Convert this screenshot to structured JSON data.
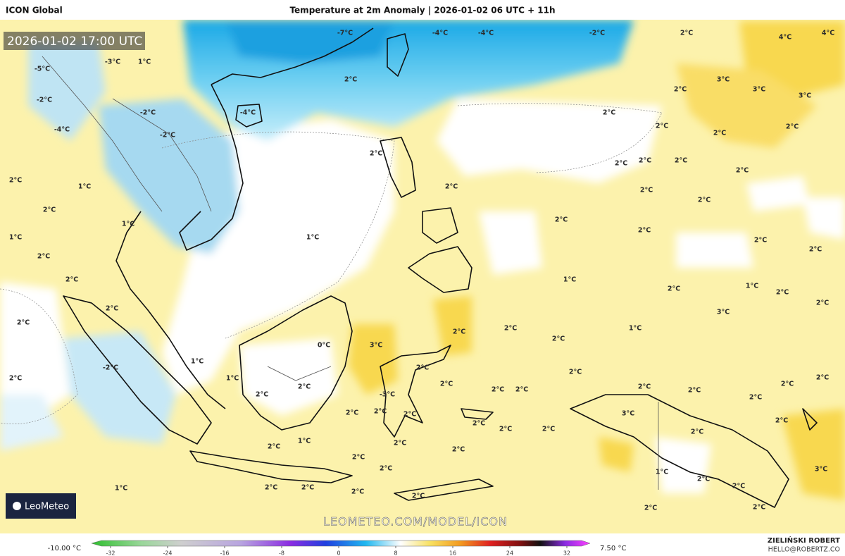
{
  "header": {
    "model": "ICON Global",
    "title": "Temperature at 2m Anomaly | 2026-01-02 06 UTC + 11h"
  },
  "timestamp": "2026-01-02 17:00 UTC",
  "watermark": "LEOMETEO.COM/MODEL/ICON",
  "logo": "LeoMeteo",
  "author": {
    "name": "ZIELIŃSKI ROBERT",
    "email": "HELLO@ROBERTZ.CO"
  },
  "colorbar": {
    "min_label": "-10.00 °C",
    "max_label": "7.50 °C",
    "ticks": [
      -32,
      -24,
      -16,
      -8,
      0,
      8,
      16,
      24,
      32
    ]
  },
  "map_labels": [
    "-7°C",
    "-4°C",
    "-4°C",
    "-2°C",
    "2°C",
    "4°C",
    "4°C",
    "-5°C",
    "-3°C",
    "1°C",
    "2°C",
    "3°C",
    "3°C",
    "2°C",
    "3°C",
    "-2°C",
    "-2°C",
    "-4°C",
    "2°C",
    "-4°C",
    "-2°C",
    "2°C",
    "2°C",
    "2°C",
    "2°C",
    "2°C",
    "1°C",
    "2°C",
    "2°C",
    "2°C",
    "2°C",
    "2°C",
    "2°C",
    "2°C",
    "2°C",
    "1°C",
    "1°C",
    "2°C",
    "2°C",
    "2°C",
    "2°C",
    "1°C",
    "2°C",
    "2°C",
    "1°C",
    "2°C",
    "1°C",
    "2°C",
    "2°C",
    "2°C",
    "3°C",
    "2°C",
    "2°C",
    "1°C",
    "2°C",
    "2°C",
    "3°C",
    "0°C",
    "1°C",
    "-2°C",
    "2°C",
    "2°C",
    "2°C",
    "2°C",
    "2°C",
    "1°C",
    "2°C",
    "2°C",
    "2°C",
    "-3°C",
    "2°C",
    "2°C",
    "2°C",
    "2°C",
    "2°C",
    "3°C",
    "2°C",
    "2°C",
    "2°C",
    "2°C",
    "2°C",
    "2°C",
    "2°C",
    "1°C",
    "2°C",
    "2°C",
    "2°C",
    "2°C",
    "2°C",
    "2°C",
    "1°C",
    "2°C",
    "3°C",
    "1°C",
    "2°C",
    "2°C",
    "2°C",
    "2°C",
    "2°C",
    "2°C",
    "2°C"
  ]
}
